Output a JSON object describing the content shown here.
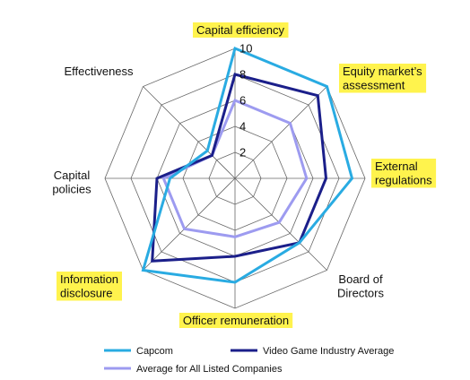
{
  "chart_data": {
    "type": "radar",
    "title": "",
    "axes": [
      "Capital efficiency",
      "Equity market's assessment",
      "External regulations",
      "Board of Directors",
      "Officer remuneration",
      "Information disclosure",
      "Capital policies",
      "Effectiveness"
    ],
    "highlighted_axes": [
      "Capital efficiency",
      "Equity market's assessment",
      "External regulations",
      "Officer remuneration",
      "Information disclosure"
    ],
    "rlim": [
      0,
      10
    ],
    "ticks": [
      "2",
      "4",
      "6",
      "8",
      "10"
    ],
    "series": [
      {
        "name": "Capcom",
        "color": "#29abe2",
        "values": [
          10,
          10,
          9,
          7,
          8,
          10,
          5,
          3
        ]
      },
      {
        "name": "Video Game Industry Average",
        "color": "#1b1f8a",
        "values": [
          8,
          9,
          7,
          7,
          6,
          9,
          6,
          2.5
        ]
      },
      {
        "name": "Average for All Listed Companies",
        "color": "#9d9bf0",
        "values": [
          6,
          6,
          5.5,
          4.8,
          4.5,
          5.5,
          5.5,
          2.5
        ]
      }
    ],
    "legend_position": "bottom",
    "grid": true
  }
}
